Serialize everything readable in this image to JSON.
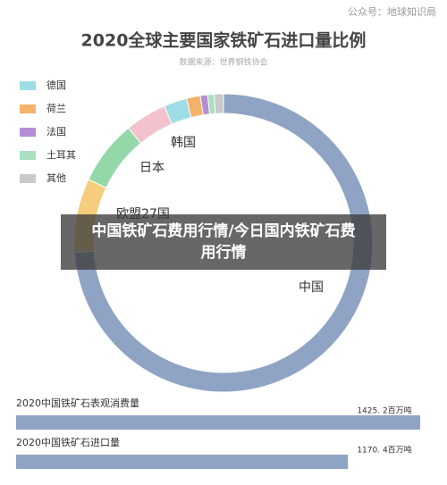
{
  "watermark": "公众号：地球知识局",
  "banner": "中国铁矿石费用行情/今日国内铁矿石费用行情",
  "chart_data": [
    {
      "type": "pie",
      "title": "2020全球主要国家铁矿石进口量比例",
      "subtitle": "数据来源：世界钢铁协会",
      "categories": [
        "中国",
        "欧盟27国",
        "日本",
        "韩国",
        "德国",
        "荷兰",
        "法国",
        "土耳其",
        "其他"
      ],
      "values": [
        74,
        8,
        7,
        4.5,
        2.5,
        1.5,
        0.8,
        0.7,
        1
      ],
      "colors": [
        "#8fa3c4",
        "#f6cd7c",
        "#94d8aa",
        "#f2c3cc",
        "#9fdde6",
        "#f5b26b",
        "#b38ed6",
        "#a8e0c0",
        "#c9c9c9"
      ]
    },
    {
      "type": "bar",
      "categories": [
        "2020中国铁矿石表观消费量",
        "2020中国铁矿石进口量"
      ],
      "values": [
        1425.2,
        1170.4
      ],
      "value_labels": [
        "1425. 2百万吨",
        "1170. 4百万吨"
      ],
      "color": "#8fa3c4"
    }
  ]
}
